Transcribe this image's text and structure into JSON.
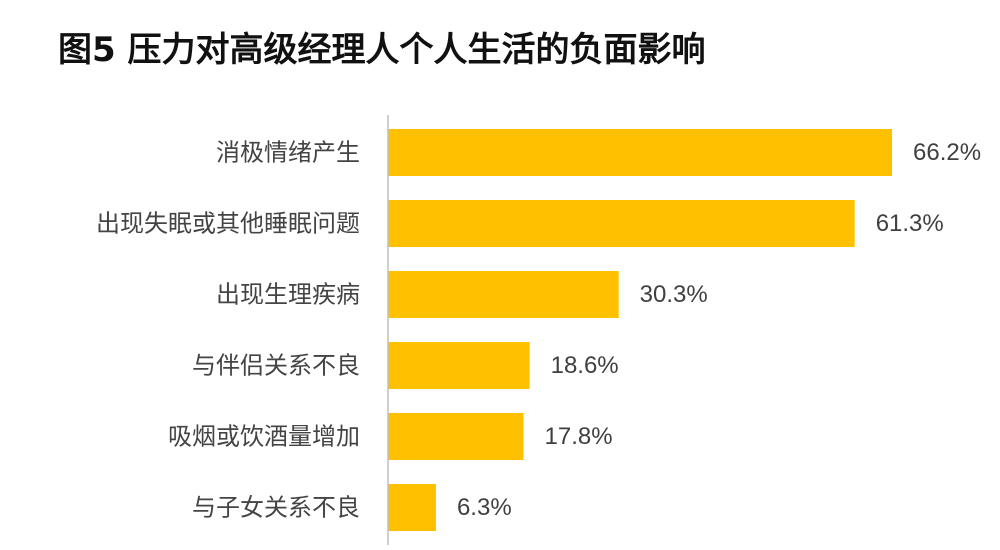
{
  "chart_data": {
    "type": "bar",
    "orientation": "horizontal",
    "title": "图5 压力对高级经理人个人生活的负面影响",
    "categories": [
      "消极情绪产生",
      "出现失眠或其他睡眠问题",
      "出现生理疾病",
      "与伴侣关系不良",
      "吸烟或饮酒量增加",
      "与子女关系不良"
    ],
    "values": [
      66.2,
      61.3,
      30.3,
      18.6,
      17.8,
      6.3
    ],
    "data_labels": [
      "66.2%",
      "61.3%",
      "30.3%",
      "18.6%",
      "17.8%",
      "6.3%"
    ],
    "unit": "%",
    "xlim": [
      0,
      70
    ],
    "bar_color": "#FFC000",
    "axis_color": "#BFBFBF",
    "grid": false,
    "legend": "none"
  }
}
